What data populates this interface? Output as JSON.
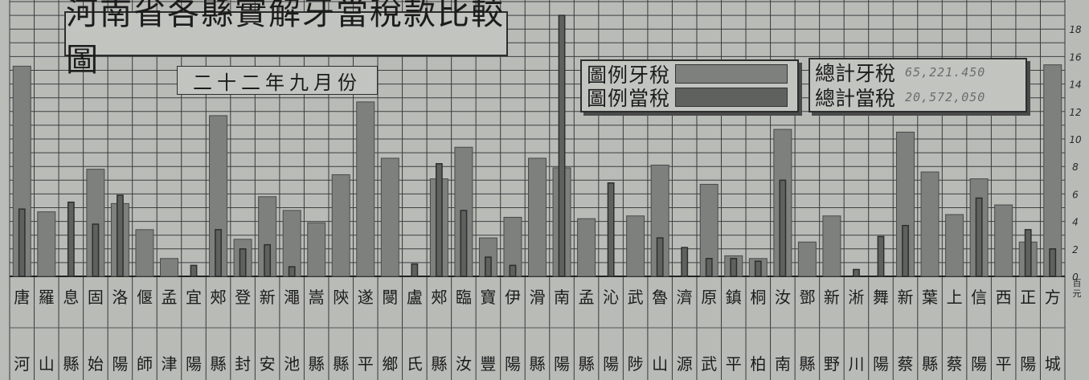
{
  "chart_data": {
    "type": "bar",
    "title": "河南省各縣實解牙當稅款比較圖",
    "subtitle": "二十二年九月份",
    "y_unit": "百元",
    "ylim": [
      0,
      20
    ],
    "y_ticks": [
      "0",
      "2",
      "4",
      "6",
      "8",
      "10",
      "12",
      "14",
      "16",
      "18"
    ],
    "categories": [
      [
        "唐",
        "河"
      ],
      [
        "羅",
        "山"
      ],
      [
        "息",
        "縣"
      ],
      [
        "固",
        "始"
      ],
      [
        "洛",
        "陽"
      ],
      [
        "偃",
        "師"
      ],
      [
        "孟",
        "津"
      ],
      [
        "宜",
        "陽"
      ],
      [
        "郟",
        "縣"
      ],
      [
        "登",
        "封"
      ],
      [
        "新",
        "安"
      ],
      [
        "澠",
        "池"
      ],
      [
        "嵩",
        "縣"
      ],
      [
        "陝",
        "縣"
      ],
      [
        "遂",
        "平"
      ],
      [
        "閿",
        "鄉"
      ],
      [
        "盧",
        "氏"
      ],
      [
        "郟",
        "縣"
      ],
      [
        "臨",
        "汝"
      ],
      [
        "寶",
        "豐"
      ],
      [
        "伊",
        "陽"
      ],
      [
        "滑",
        "縣"
      ],
      [
        "南",
        "陽"
      ],
      [
        "孟",
        "縣"
      ],
      [
        "沁",
        "陽"
      ],
      [
        "武",
        "陟"
      ],
      [
        "魯",
        "山"
      ],
      [
        "濟",
        "源"
      ],
      [
        "原",
        "武"
      ],
      [
        "鎮",
        "平"
      ],
      [
        "桐",
        "柏"
      ],
      [
        "汝",
        "南"
      ],
      [
        "鄧",
        "縣"
      ],
      [
        "新",
        "野"
      ],
      [
        "淅",
        "川"
      ],
      [
        "舞",
        "陽"
      ],
      [
        "新",
        "蔡"
      ],
      [
        "葉",
        "縣"
      ],
      [
        "上",
        "蔡"
      ],
      [
        "信",
        "陽"
      ],
      [
        "西",
        "平"
      ],
      [
        "正",
        "陽"
      ],
      [
        "方",
        "城"
      ]
    ],
    "series": [
      {
        "name": "牙稅",
        "color": "#7d807d",
        "values": [
          15.3,
          4.7,
          0,
          7.8,
          5.3,
          3.4,
          1.3,
          0,
          11.7,
          2.7,
          5.8,
          4.8,
          3.9,
          7.4,
          12.7,
          8.6,
          0,
          7.1,
          9.4,
          2.8,
          4.3,
          8.6,
          7.9,
          4.2,
          0,
          4.4,
          8.1,
          0,
          6.7,
          1.5,
          1.3,
          10.7,
          2.5,
          4.4,
          0,
          0,
          10.5,
          7.6,
          4.5,
          7.1,
          5.2,
          2.5,
          15.4
        ]
      },
      {
        "name": "當稅",
        "color": "#5e615e",
        "values": [
          4.9,
          0,
          5.4,
          3.8,
          5.9,
          0,
          0,
          0.8,
          3.4,
          2.0,
          2.3,
          0.7,
          0,
          0,
          0,
          0,
          0.9,
          8.2,
          4.8,
          1.4,
          0.8,
          0,
          19.0,
          0,
          6.8,
          0,
          2.8,
          2.1,
          1.3,
          1.3,
          1.1,
          7.0,
          0,
          0,
          0.5,
          2.9,
          3.7,
          0,
          0,
          5.7,
          0,
          3.4,
          2.0
        ]
      }
    ],
    "totals": [
      {
        "label": "總計牙稅",
        "value": "65,221.450"
      },
      {
        "label": "總計當稅",
        "value": "20,572,050"
      }
    ],
    "legend_position": "top-right",
    "grid": true
  },
  "legend": [
    {
      "label": "圖例牙稅",
      "color": "#7d807d"
    },
    {
      "label": "圖例當稅",
      "color": "#5e615e"
    }
  ]
}
